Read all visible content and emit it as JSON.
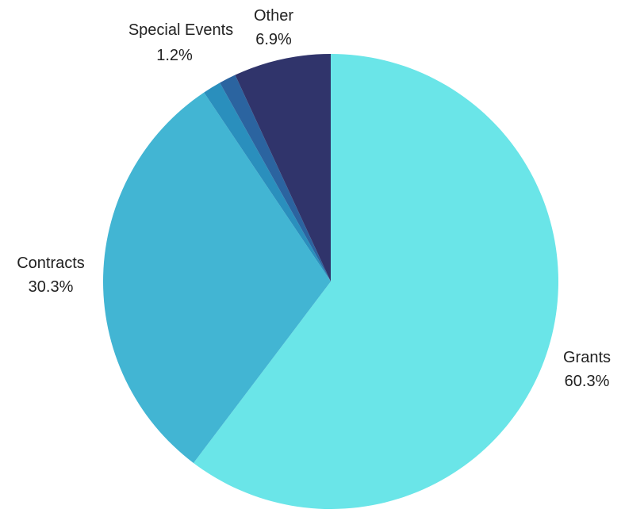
{
  "chart_data": {
    "type": "pie",
    "title": "",
    "start_angle_deg": 0,
    "direction": "clockwise",
    "slices": [
      {
        "label": "Grants",
        "value": 60.3,
        "value_label": "60.3%",
        "color": "#6ae5e8"
      },
      {
        "label": "Contracts",
        "value": 30.3,
        "value_label": "30.3%",
        "color": "#42b5d3"
      },
      {
        "label": "",
        "value": 1.3,
        "value_label": "",
        "color": "#2a8fbd"
      },
      {
        "label": "Special Events",
        "value": 1.2,
        "value_label": "1.2%",
        "color": "#2b64a0"
      },
      {
        "label": "Other",
        "value": 6.9,
        "value_label": "6.9%",
        "color": "#30346b"
      }
    ]
  }
}
